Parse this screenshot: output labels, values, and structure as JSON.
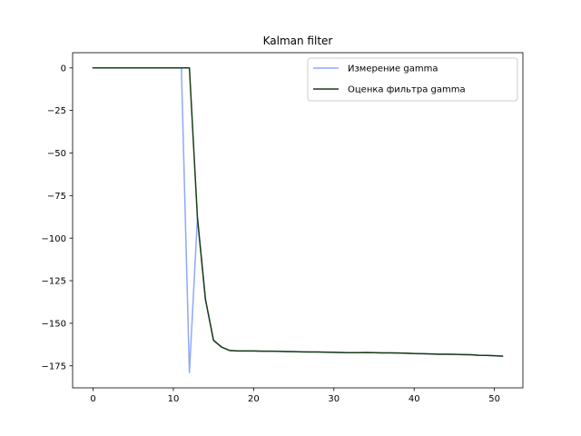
{
  "chart_data": {
    "type": "line",
    "title": "Kalman filter",
    "xlabel": "",
    "ylabel": "",
    "xlim": [
      -2.55,
      53.55
    ],
    "ylim": [
      -187.95,
      8.95
    ],
    "xticks": [
      0,
      10,
      20,
      30,
      40,
      50
    ],
    "yticks": [
      0,
      -25,
      -50,
      -75,
      -100,
      -125,
      -150,
      -175
    ],
    "xtick_labels": [
      "0",
      "10",
      "20",
      "30",
      "40",
      "50"
    ],
    "ytick_labels": [
      "0",
      "−25",
      "−50",
      "−75",
      "−100",
      "−125",
      "−150",
      "−175"
    ],
    "grid": false,
    "legend_position": "top-right",
    "series": [
      {
        "name": "Измерение gamma",
        "color": "#8fa8f8",
        "x": [
          0,
          1,
          2,
          3,
          4,
          5,
          6,
          7,
          8,
          9,
          10,
          11,
          12,
          13,
          14,
          15,
          16,
          17,
          18,
          19,
          20,
          21,
          22,
          23,
          24,
          25,
          26,
          27,
          28,
          29,
          30,
          31,
          32,
          33,
          34,
          35,
          36,
          37,
          38,
          39,
          40,
          41,
          42,
          43,
          44,
          45,
          46,
          47,
          48,
          49,
          50,
          51
        ],
        "values": [
          0,
          0,
          0,
          0,
          0,
          0,
          0,
          0,
          0,
          0,
          0,
          0,
          -179,
          -88,
          -136,
          -160,
          -164,
          -166,
          -166.3,
          -166.3,
          -166.3,
          -166.4,
          -166.4,
          -166.5,
          -166.6,
          -166.7,
          -166.8,
          -166.9,
          -166.9,
          -167.0,
          -167.1,
          -167.2,
          -167.3,
          -167.3,
          -167.2,
          -167.3,
          -167.4,
          -167.4,
          -167.5,
          -167.6,
          -167.8,
          -167.9,
          -168.0,
          -168.2,
          -168.2,
          -168.3,
          -168.4,
          -168.5,
          -168.8,
          -168.9,
          -169.1,
          -169.3
        ]
      },
      {
        "name": "Оценка фильтра gamma",
        "color": "#1a3d14",
        "x": [
          0,
          1,
          2,
          3,
          4,
          5,
          6,
          7,
          8,
          9,
          10,
          11,
          12,
          13,
          14,
          15,
          16,
          17,
          18,
          19,
          20,
          21,
          22,
          23,
          24,
          25,
          26,
          27,
          28,
          29,
          30,
          31,
          32,
          33,
          34,
          35,
          36,
          37,
          38,
          39,
          40,
          41,
          42,
          43,
          44,
          45,
          46,
          47,
          48,
          49,
          50,
          51
        ],
        "values": [
          0,
          0,
          0,
          0,
          0,
          0,
          0,
          0,
          0,
          0,
          0,
          0,
          0,
          -88,
          -136,
          -160,
          -164,
          -166,
          -166.3,
          -166.3,
          -166.3,
          -166.4,
          -166.4,
          -166.5,
          -166.6,
          -166.7,
          -166.8,
          -166.9,
          -166.9,
          -167.0,
          -167.1,
          -167.2,
          -167.3,
          -167.3,
          -167.2,
          -167.3,
          -167.4,
          -167.4,
          -167.5,
          -167.6,
          -167.8,
          -167.9,
          -168.0,
          -168.2,
          -168.2,
          -168.3,
          -168.4,
          -168.5,
          -168.8,
          -168.9,
          -169.1,
          -169.3
        ]
      }
    ]
  }
}
